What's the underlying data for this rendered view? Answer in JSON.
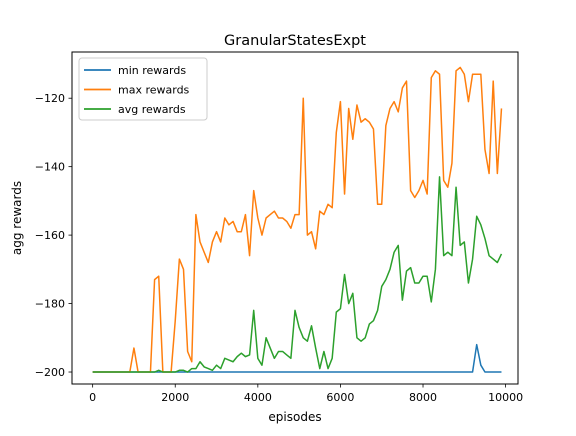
{
  "chart_data": {
    "type": "line",
    "title": "GranularStatesExpt",
    "xlabel": "episodes",
    "ylabel": "agg rewards",
    "xlim": [
      -500,
      10300
    ],
    "ylim": [
      -203.5,
      -106.5
    ],
    "xticks": [
      0,
      2000,
      4000,
      6000,
      8000,
      10000
    ],
    "xtick_labels": [
      "0",
      "2000",
      "4000",
      "6000",
      "8000",
      "10000"
    ],
    "yticks": [
      -200,
      -180,
      -160,
      -140,
      -120
    ],
    "ytick_labels": [
      "−200",
      "−180",
      "−160",
      "−140",
      "−120"
    ],
    "grid": false,
    "legend_position": "upper-left",
    "x": [
      0,
      100,
      200,
      300,
      400,
      500,
      600,
      700,
      800,
      900,
      1000,
      1100,
      1200,
      1300,
      1400,
      1500,
      1600,
      1700,
      1800,
      1900,
      2000,
      2100,
      2200,
      2300,
      2400,
      2500,
      2600,
      2700,
      2800,
      2900,
      3000,
      3100,
      3200,
      3300,
      3400,
      3500,
      3600,
      3700,
      3800,
      3900,
      4000,
      4100,
      4200,
      4300,
      4400,
      4500,
      4600,
      4700,
      4800,
      4900,
      5000,
      5100,
      5200,
      5300,
      5400,
      5500,
      5600,
      5700,
      5800,
      5900,
      6000,
      6100,
      6200,
      6300,
      6400,
      6500,
      6600,
      6700,
      6800,
      6900,
      7000,
      7100,
      7200,
      7300,
      7400,
      7500,
      7600,
      7700,
      7800,
      7900,
      8000,
      8100,
      8200,
      8300,
      8400,
      8500,
      8600,
      8700,
      8800,
      8900,
      9000,
      9100,
      9200,
      9300,
      9400,
      9500,
      9600,
      9700,
      9800,
      9900
    ],
    "series": [
      {
        "name": "min rewards",
        "color": "#1f77b4",
        "values": [
          -200,
          -200,
          -200,
          -200,
          -200,
          -200,
          -200,
          -200,
          -200,
          -200,
          -200,
          -200,
          -200,
          -200,
          -200,
          -200,
          -200,
          -200,
          -200,
          -200,
          -200,
          -200,
          -200,
          -200,
          -200,
          -200,
          -200,
          -200,
          -200,
          -200,
          -200,
          -200,
          -200,
          -200,
          -200,
          -200,
          -200,
          -200,
          -200,
          -200,
          -200,
          -200,
          -200,
          -200,
          -200,
          -200,
          -200,
          -200,
          -200,
          -200,
          -200,
          -200,
          -200,
          -200,
          -200,
          -200,
          -200,
          -200,
          -200,
          -200,
          -200,
          -200,
          -200,
          -200,
          -200,
          -200,
          -200,
          -200,
          -200,
          -200,
          -200,
          -200,
          -200,
          -200,
          -200,
          -200,
          -200,
          -200,
          -200,
          -200,
          -200,
          -200,
          -200,
          -200,
          -200,
          -200,
          -200,
          -200,
          -200,
          -200,
          -200,
          -200,
          -200,
          -192,
          -198,
          -200,
          -200,
          -200,
          -200,
          -200
        ]
      },
      {
        "name": "max rewards",
        "color": "#ff7f0e",
        "values": [
          -200,
          -200,
          -200,
          -200,
          -200,
          -200,
          -200,
          -200,
          -200,
          -200,
          -193,
          -200,
          -200,
          -200,
          -200,
          -173,
          -172,
          -200,
          -200,
          -200,
          -185,
          -167,
          -170,
          -194,
          -197,
          -154,
          -162,
          -165,
          -168,
          -162,
          -159,
          -162,
          -155,
          -157,
          -156,
          -159,
          -159,
          -154,
          -166,
          -147,
          -155,
          -160,
          -155,
          -154,
          -153,
          -155,
          -155,
          -156,
          -158,
          -154,
          -154,
          -120,
          -160,
          -159,
          -164,
          -153,
          -154,
          -151,
          -152,
          -130,
          -121,
          -148,
          -123,
          -132,
          -122,
          -127,
          -126,
          -127,
          -129,
          -151,
          -151,
          -128,
          -123,
          -121,
          -124,
          -117,
          -115,
          -147,
          -149,
          -147,
          -144,
          -148,
          -114,
          -112,
          -113,
          -144,
          -146,
          -139,
          -112,
          -111,
          -113,
          -121,
          -113,
          -113,
          -113,
          -135,
          -142,
          -115,
          -142,
          -123
        ]
      },
      {
        "name": "avg rewards",
        "color": "#2ca02c",
        "values": [
          -200,
          -200,
          -200,
          -200,
          -200,
          -200,
          -200,
          -200,
          -200,
          -200,
          -200,
          -200,
          -200,
          -200,
          -200,
          -200,
          -199.5,
          -200,
          -200,
          -200,
          -200,
          -199.5,
          -199.5,
          -200,
          -199,
          -199,
          -197,
          -198.5,
          -199,
          -199.5,
          -198,
          -199,
          -196,
          -196.5,
          -197,
          -195.5,
          -194.5,
          -195.5,
          -195,
          -182,
          -196,
          -198,
          -190,
          -193,
          -196,
          -194,
          -194,
          -195,
          -196,
          -182,
          -187,
          -190,
          -191,
          -186.5,
          -193,
          -199,
          -194,
          -199,
          -196,
          -182.5,
          -181.5,
          -171.5,
          -180,
          -177,
          -190,
          -191,
          -190,
          -186,
          -185,
          -182,
          -175,
          -173,
          -170,
          -165,
          -163,
          -179,
          -170.5,
          -169.5,
          -174,
          -174,
          -172,
          -172,
          -179.5,
          -170,
          -143,
          -166,
          -165,
          -166,
          -146,
          -163,
          -162,
          -174,
          -167,
          -154.5,
          -157,
          -161,
          -166,
          -167,
          -168,
          -165.5
        ]
      }
    ]
  }
}
